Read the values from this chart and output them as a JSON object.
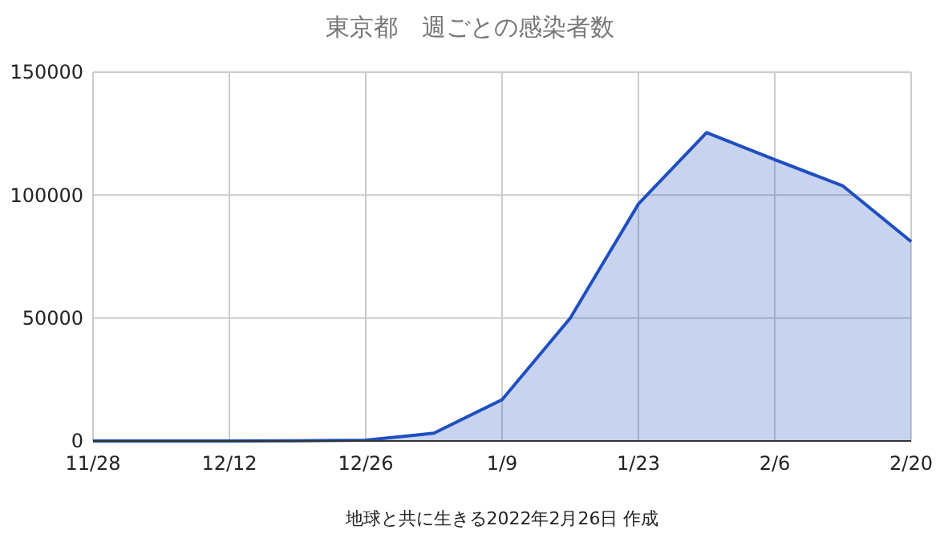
{
  "chart_data": {
    "type": "area",
    "title": "東京都　週ごとの感染者数",
    "annotations": [
      "地球と共に生きる2022年2月26日 作成"
    ],
    "categories": [
      "11/28",
      null,
      "12/12",
      null,
      "12/26",
      null,
      "1/9",
      null,
      "1/23",
      null,
      "2/6",
      null,
      "2/20"
    ],
    "series": [
      {
        "color": "#1f4fbf",
        "values": [
          0,
          0,
          0,
          100,
          300,
          3200,
          16800,
          50000,
          96400,
          125400,
          114400,
          103700,
          81100
        ]
      }
    ],
    "ylim": [
      0,
      150000
    ],
    "yticks": [
      0,
      50000,
      100000,
      150000
    ],
    "grid": true
  }
}
